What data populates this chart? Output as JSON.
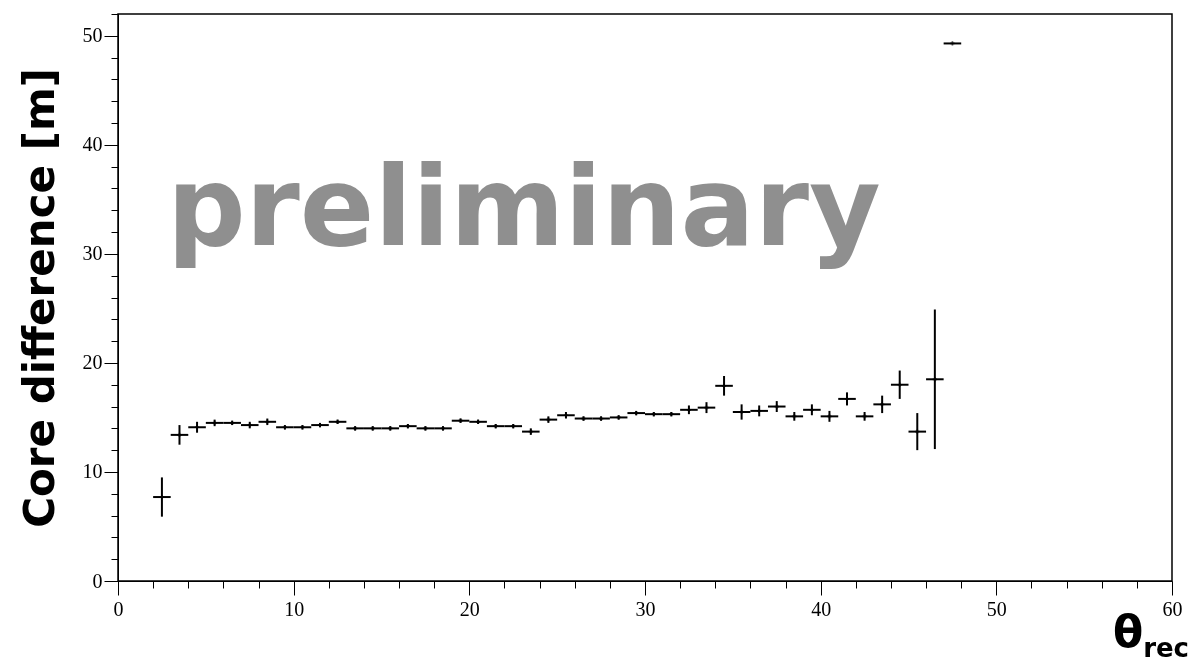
{
  "chart_data": {
    "type": "scatter",
    "xlabel": "θ$_{rec}$",
    "ylabel": "Core difference [m]",
    "marker": "cross",
    "grid": false,
    "annotations": [
      "preliminary"
    ],
    "x": [
      2.5,
      3.5,
      4.5,
      5.5,
      6.5,
      7.5,
      8.5,
      9.5,
      10.5,
      11.5,
      12.5,
      13.5,
      14.5,
      15.5,
      16.5,
      17.5,
      18.5,
      19.5,
      20.5,
      21.5,
      22.5,
      23.5,
      24.5,
      25.5,
      26.5,
      27.5,
      28.5,
      29.5,
      30.5,
      31.5,
      32.5,
      33.5,
      34.5,
      35.5,
      36.5,
      37.5,
      38.5,
      39.5,
      40.5,
      41.5,
      42.5,
      43.5,
      44.5,
      45.5,
      46.5,
      47.5
    ],
    "values": [
      7.7,
      13.4,
      14.1,
      14.5,
      14.5,
      14.3,
      14.6,
      14.1,
      14.1,
      14.3,
      14.6,
      14.0,
      14.0,
      14.0,
      14.2,
      14.0,
      14.0,
      14.7,
      14.6,
      14.2,
      14.2,
      13.7,
      14.8,
      15.2,
      14.9,
      14.9,
      15.0,
      15.4,
      15.3,
      15.3,
      15.7,
      15.9,
      17.9,
      15.5,
      15.6,
      16.0,
      15.1,
      15.7,
      15.1,
      16.7,
      15.1,
      16.2,
      18.0,
      13.7,
      18.5,
      49.3
    ],
    "errors": [
      1.8,
      0.9,
      0.5,
      0.3,
      0.2,
      0.3,
      0.3,
      0.2,
      0.2,
      0.2,
      0.2,
      0.2,
      0.2,
      0.2,
      0.2,
      0.2,
      0.2,
      0.2,
      0.2,
      0.2,
      0.2,
      0.3,
      0.3,
      0.3,
      0.2,
      0.2,
      0.2,
      0.2,
      0.2,
      0.2,
      0.4,
      0.5,
      0.9,
      0.7,
      0.5,
      0.5,
      0.4,
      0.5,
      0.5,
      0.6,
      0.4,
      0.8,
      1.3,
      1.7,
      6.4,
      0
    ],
    "xerrors": [
      0.5,
      0.5,
      0.5,
      0.5,
      0.5,
      0.5,
      0.5,
      0.5,
      0.5,
      0.5,
      0.5,
      0.5,
      0.5,
      0.5,
      0.5,
      0.5,
      0.5,
      0.5,
      0.5,
      0.5,
      0.5,
      0.5,
      0.5,
      0.5,
      0.5,
      0.5,
      0.5,
      0.5,
      0.5,
      0.5,
      0.5,
      0.5,
      0.5,
      0.5,
      0.5,
      0.5,
      0.5,
      0.5,
      0.5,
      0.5,
      0.5,
      0.5,
      0.5,
      0.5,
      0.5,
      0.5
    ],
    "xlim": [
      0,
      60
    ],
    "ylim": [
      0,
      52
    ],
    "xticks": [
      0,
      {
        "value": 2,
        "label": null
      },
      {
        "value": 4,
        "label": null
      },
      {
        "value": 6,
        "label": null
      },
      {
        "value": 8,
        "label": null
      },
      10,
      {
        "value": 12,
        "label": null
      },
      {
        "value": 14,
        "label": null
      },
      {
        "value": 16,
        "label": null
      },
      {
        "value": 18,
        "label": null
      },
      20,
      {
        "value": 22,
        "label": null
      },
      {
        "value": 24,
        "label": null
      },
      {
        "value": 26,
        "label": null
      },
      {
        "value": 28,
        "label": null
      },
      30,
      {
        "value": 32,
        "label": null
      },
      {
        "value": 34,
        "label": null
      },
      {
        "value": 36,
        "label": null
      },
      {
        "value": 38,
        "label": null
      },
      40,
      {
        "value": 42,
        "label": null
      },
      {
        "value": 44,
        "label": null
      },
      {
        "value": 46,
        "label": null
      },
      {
        "value": 48,
        "label": null
      },
      50,
      {
        "value": 52,
        "label": null
      },
      {
        "value": 54,
        "label": null
      },
      {
        "value": 56,
        "label": null
      },
      {
        "value": 58,
        "label": null
      },
      60
    ],
    "yticks": [
      0,
      {
        "value": 2,
        "label": null
      },
      {
        "value": 4,
        "label": null
      },
      {
        "value": 6,
        "label": null
      },
      {
        "value": 8,
        "label": null
      },
      10,
      {
        "value": 12,
        "label": null
      },
      {
        "value": 14,
        "label": null
      },
      {
        "value": 16,
        "label": null
      },
      {
        "value": 18,
        "label": null
      },
      20,
      {
        "value": 22,
        "label": null
      },
      {
        "value": 24,
        "label": null
      },
      {
        "value": 26,
        "label": null
      },
      {
        "value": 28,
        "label": null
      },
      30,
      {
        "value": 32,
        "label": null
      },
      {
        "value": 34,
        "label": null
      },
      {
        "value": 36,
        "label": null
      },
      {
        "value": 38,
        "label": null
      },
      40,
      {
        "value": 42,
        "label": null
      },
      {
        "value": 44,
        "label": null
      },
      {
        "value": 46,
        "label": null
      },
      {
        "value": 48,
        "label": null
      },
      50,
      {
        "value": 52,
        "label": null
      }
    ]
  }
}
